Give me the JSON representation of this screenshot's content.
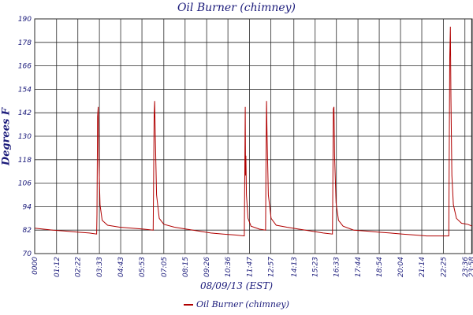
{
  "chart_data": {
    "type": "line",
    "title": "Oil Burner (chimney)",
    "xlabel": "08/09/13 (EST)",
    "ylabel": "Degrees F",
    "ylim": [
      70,
      190
    ],
    "yticks": [
      70,
      82,
      94,
      106,
      118,
      130,
      142,
      154,
      166,
      178,
      190
    ],
    "xlim": [
      0,
      1440
    ],
    "xticks": [
      {
        "label": "0000",
        "value": 0
      },
      {
        "label": "01:12",
        "value": 72
      },
      {
        "label": "02:22",
        "value": 142
      },
      {
        "label": "03:33",
        "value": 213
      },
      {
        "label": "04:43",
        "value": 283
      },
      {
        "label": "05:53",
        "value": 353
      },
      {
        "label": "07:05",
        "value": 425
      },
      {
        "label": "08:15",
        "value": 495
      },
      {
        "label": "09:26",
        "value": 566
      },
      {
        "label": "10:36",
        "value": 636
      },
      {
        "label": "11:47",
        "value": 707
      },
      {
        "label": "12:57",
        "value": 777
      },
      {
        "label": "14:13",
        "value": 853
      },
      {
        "label": "15:23",
        "value": 923
      },
      {
        "label": "16:33",
        "value": 993
      },
      {
        "label": "17:44",
        "value": 1064
      },
      {
        "label": "18:54",
        "value": 1134
      },
      {
        "label": "20:04",
        "value": 1204
      },
      {
        "label": "21:14",
        "value": 1274
      },
      {
        "label": "22:25",
        "value": 1345
      },
      {
        "label": "23:36",
        "value": 1416
      },
      {
        "label": "23:58",
        "value": 1438
      }
    ],
    "grid": true,
    "legend_position": "bottom",
    "series": [
      {
        "name": "Oil Burner (chimney)",
        "color": "#b00000",
        "points": [
          [
            0,
            83
          ],
          [
            30,
            82.5
          ],
          [
            60,
            82
          ],
          [
            100,
            81.5
          ],
          [
            140,
            81
          ],
          [
            180,
            80.5
          ],
          [
            204,
            80
          ],
          [
            205,
            90
          ],
          [
            207,
            140
          ],
          [
            209,
            145
          ],
          [
            211,
            120
          ],
          [
            215,
            95
          ],
          [
            222,
            87
          ],
          [
            240,
            84.5
          ],
          [
            280,
            83.5
          ],
          [
            320,
            83
          ],
          [
            360,
            82.5
          ],
          [
            390,
            82
          ],
          [
            391,
            100
          ],
          [
            393,
            140
          ],
          [
            395,
            148
          ],
          [
            397,
            130
          ],
          [
            401,
            100
          ],
          [
            410,
            88
          ],
          [
            425,
            85
          ],
          [
            460,
            83.5
          ],
          [
            500,
            82.5
          ],
          [
            540,
            81.5
          ],
          [
            580,
            80.5
          ],
          [
            620,
            80
          ],
          [
            660,
            79.5
          ],
          [
            690,
            79
          ],
          [
            691,
            100
          ],
          [
            693,
            145
          ],
          [
            694,
            110
          ],
          [
            695,
            120
          ],
          [
            697,
            100
          ],
          [
            702,
            88
          ],
          [
            712,
            84
          ],
          [
            740,
            82.5
          ],
          [
            760,
            82
          ],
          [
            761,
            110
          ],
          [
            763,
            148
          ],
          [
            765,
            130
          ],
          [
            769,
            100
          ],
          [
            778,
            88
          ],
          [
            795,
            84.5
          ],
          [
            830,
            83.5
          ],
          [
            870,
            82.5
          ],
          [
            910,
            81.5
          ],
          [
            950,
            80.5
          ],
          [
            980,
            80
          ],
          [
            981,
            100
          ],
          [
            983,
            144
          ],
          [
            985,
            145
          ],
          [
            987,
            120
          ],
          [
            992,
            96
          ],
          [
            1000,
            87
          ],
          [
            1015,
            84
          ],
          [
            1050,
            82
          ],
          [
            1090,
            81.5
          ],
          [
            1130,
            81
          ],
          [
            1170,
            80.5
          ],
          [
            1210,
            80
          ],
          [
            1250,
            79.5
          ],
          [
            1290,
            79
          ],
          [
            1330,
            79
          ],
          [
            1363,
            79
          ],
          [
            1364,
            110
          ],
          [
            1366,
            170
          ],
          [
            1368,
            186
          ],
          [
            1370,
            150
          ],
          [
            1373,
            110
          ],
          [
            1378,
            95
          ],
          [
            1388,
            88
          ],
          [
            1405,
            85.5
          ],
          [
            1425,
            85
          ],
          [
            1440,
            84
          ]
        ]
      }
    ]
  }
}
